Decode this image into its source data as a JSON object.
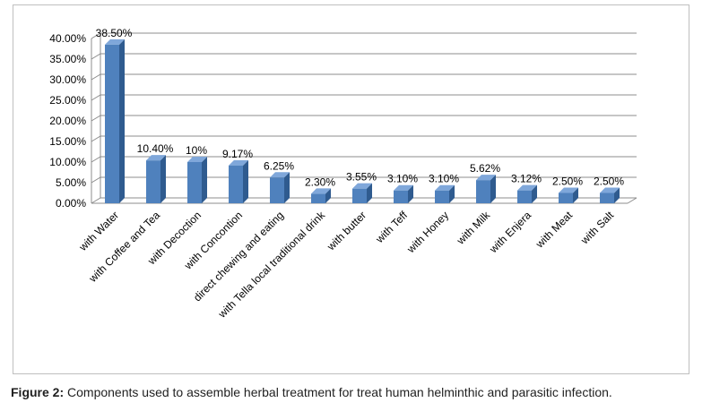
{
  "caption": {
    "label": "Figure 2:",
    "text": " Components used to assemble herbal treatment for treat human helminthic and parasitic infection."
  },
  "colors": {
    "bar_front": "#4f81bd",
    "bar_side": "#2f5b8f",
    "bar_top": "#7fa7da",
    "grid": "#8c8c8c"
  },
  "chart_data": {
    "type": "bar",
    "title": "",
    "xlabel": "",
    "ylabel": "",
    "ylim": [
      0,
      40
    ],
    "grid": true,
    "three_d": true,
    "y_ticks": [
      "0.00%",
      "5.00%",
      "10.00%",
      "15.00%",
      "20.00%",
      "25.00%",
      "30.00%",
      "35.00%",
      "40.00%"
    ],
    "categories": [
      "with Water",
      "with Coffee and Tea",
      "with Decoction",
      "with Concontion",
      "direct chewing and eating",
      "with Tella local traditional drink",
      "with butter",
      "with Teff",
      "with Honey",
      "with Milk",
      "with Enjera",
      "with Meat",
      "with Salt"
    ],
    "values": [
      38.5,
      10.4,
      10,
      9.17,
      6.25,
      2.3,
      3.55,
      3.1,
      3.1,
      5.62,
      3.12,
      2.5,
      2.5
    ],
    "data_labels": [
      "38.50%",
      "10.40%",
      "10%",
      "9.17%",
      "6.25%",
      "2.30%",
      "3.55%",
      "3.10%",
      "3.10%",
      "5.62%",
      "3.12%",
      "2.50%",
      "2.50%"
    ]
  }
}
